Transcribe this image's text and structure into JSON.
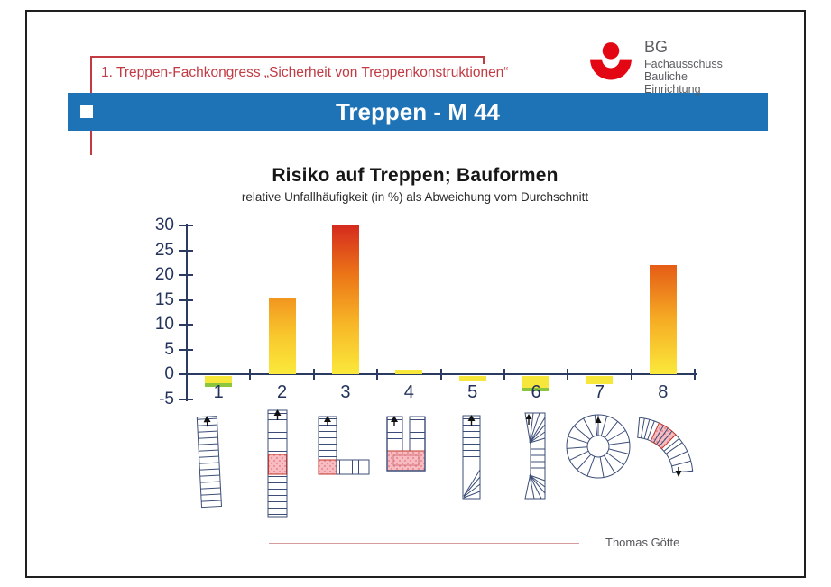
{
  "header": {
    "congress_line": "1. Treppen-Fachkongress „Sicherheit von Treppenkonstruktionen“",
    "slide_title": "Treppen - M 44"
  },
  "logo": {
    "abbr": "BG",
    "line1": "Fachausschuss",
    "line2": "Bauliche Einrichtung"
  },
  "footer": {
    "author": "Thomas Götte"
  },
  "colors": {
    "title_bar_blue": "#1d73b6",
    "header_red": "#c23a42",
    "logo_red": "#e30613",
    "axis_navy": "#2a3a60",
    "bar_yellow": "#f8e73b",
    "bar_orange": "#f2951f",
    "bar_red": "#d52b1e",
    "bar_green_tip": "#8cc63f",
    "landing_pink": "#f7bcc1"
  },
  "chart_data": {
    "type": "bar",
    "title": "Risiko auf Treppen; Bauformen",
    "subtitle": "relative Unfallhäufigkeit (in %) als Abweichung vom Durchschnitt",
    "categories": [
      "1",
      "2",
      "3",
      "4",
      "5",
      "6",
      "7",
      "8"
    ],
    "values": [
      -2.5,
      15.5,
      30,
      1,
      -1.5,
      -3.5,
      -2,
      22
    ],
    "ylim": [
      -5,
      30
    ],
    "ytick_step": 5,
    "xlabel": "",
    "ylabel": "",
    "grid": false,
    "legend": null,
    "bar_styles": [
      {
        "colors": [
          "#f8e73b"
        ],
        "tip": "#8cc63f"
      },
      {
        "colors": [
          "#fbe93b",
          "#f8c82d",
          "#f2951f"
        ]
      },
      {
        "colors": [
          "#fbe93b",
          "#f7b727",
          "#ec7617",
          "#d52b1e"
        ]
      },
      {
        "colors": [
          "#f8e73b"
        ]
      },
      {
        "colors": [
          "#f8e73b"
        ]
      },
      {
        "colors": [
          "#f8e73b"
        ],
        "tip": "#8cc63f"
      },
      {
        "colors": [
          "#f8e73b"
        ]
      },
      {
        "colors": [
          "#fbe93b",
          "#f6ac24",
          "#e55c16"
        ]
      }
    ]
  }
}
